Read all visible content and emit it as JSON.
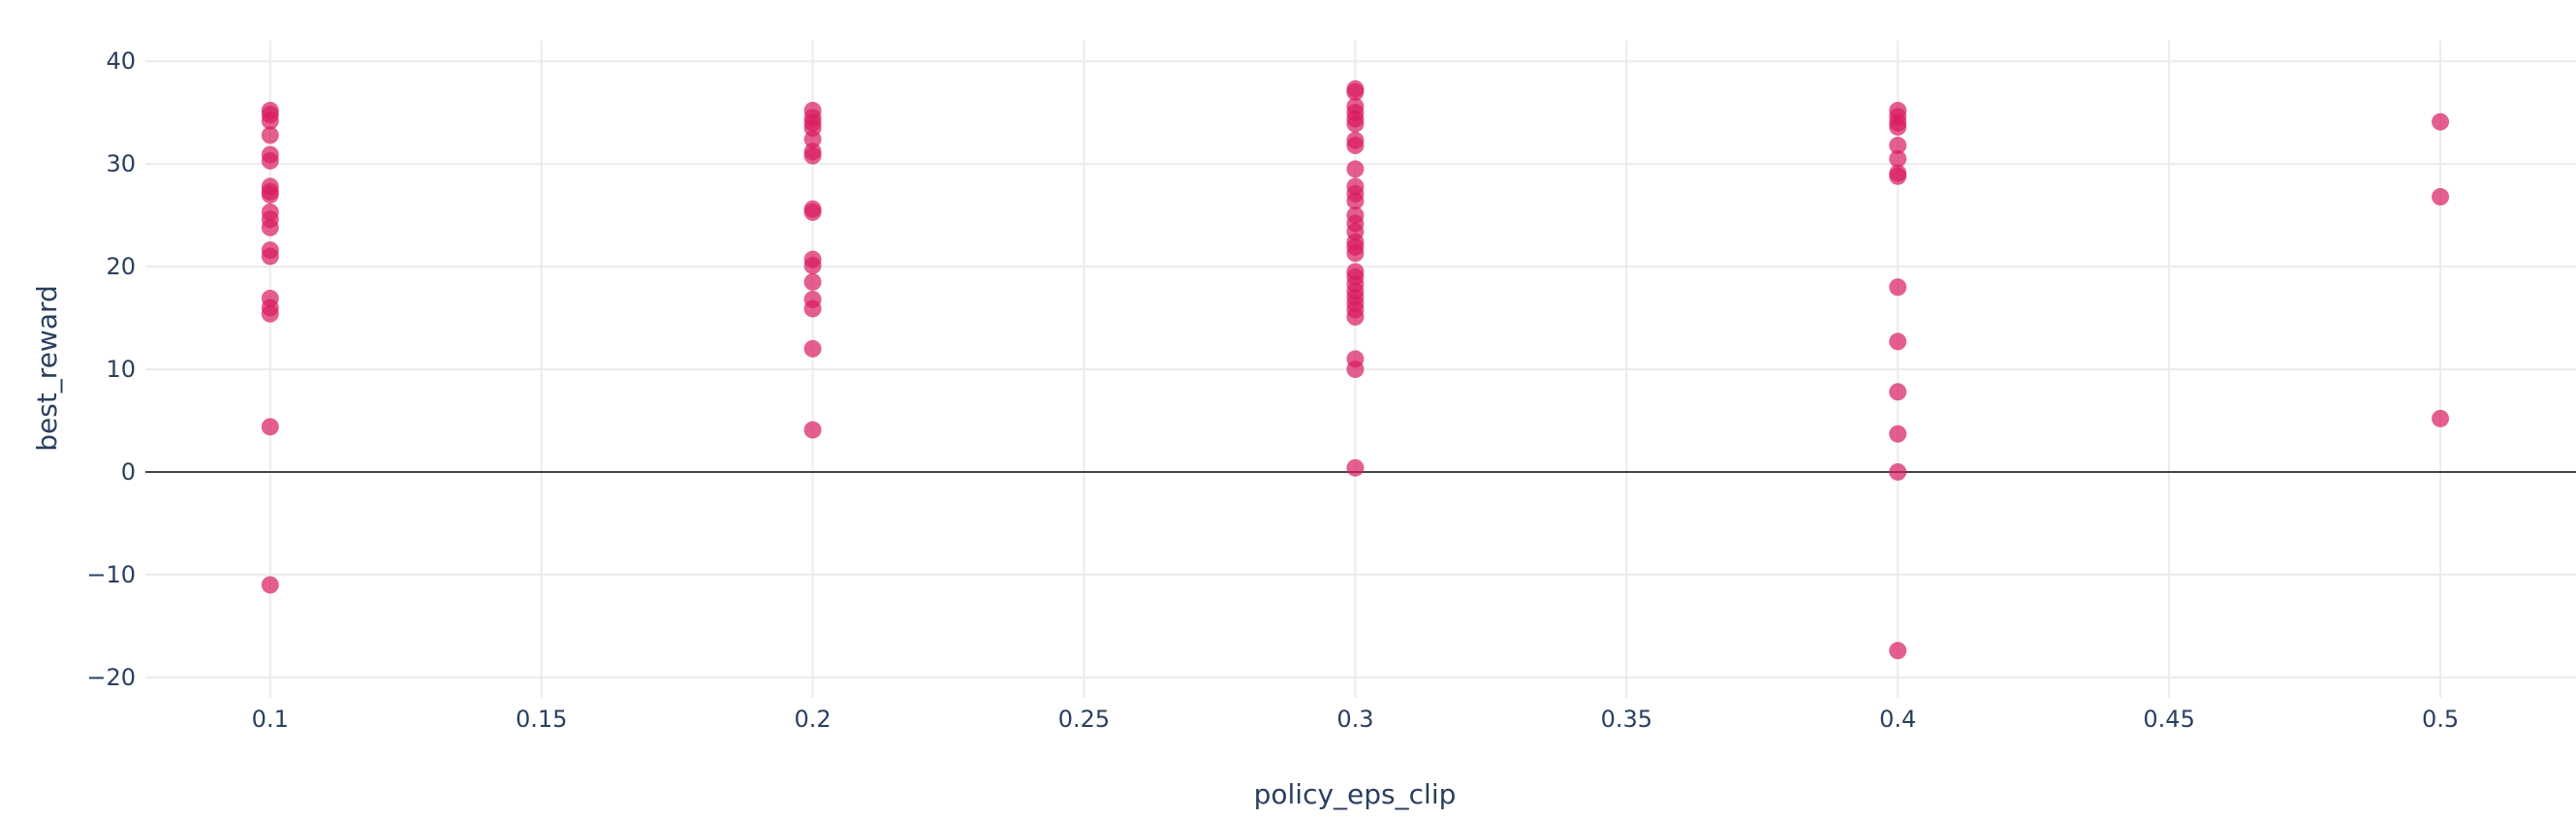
{
  "chart_data": {
    "type": "scatter",
    "xlabel": "policy_eps_clip",
    "ylabel": "best_reward",
    "xlim": [
      0.077,
      0.525
    ],
    "ylim": [
      -22,
      42
    ],
    "x_ticks": [
      0.1,
      0.15,
      0.2,
      0.25,
      0.3,
      0.35,
      0.4,
      0.45,
      0.5
    ],
    "x_tick_labels": [
      "0.1",
      "0.15",
      "0.2",
      "0.25",
      "0.3",
      "0.35",
      "0.4",
      "0.45",
      "0.5"
    ],
    "y_ticks": [
      -20,
      -10,
      0,
      10,
      20,
      30,
      40
    ],
    "y_tick_labels": [
      "−20",
      "−10",
      "0",
      "10",
      "20",
      "30",
      "40"
    ],
    "grid": true,
    "marker_color": "#d81b60",
    "series": [
      {
        "points": [
          {
            "x": 0.1,
            "y": 35.2
          },
          {
            "x": 0.1,
            "y": 34.8
          },
          {
            "x": 0.1,
            "y": 34.2
          },
          {
            "x": 0.1,
            "y": 32.8
          },
          {
            "x": 0.1,
            "y": 30.9
          },
          {
            "x": 0.1,
            "y": 30.3
          },
          {
            "x": 0.1,
            "y": 27.8
          },
          {
            "x": 0.1,
            "y": 27.3
          },
          {
            "x": 0.1,
            "y": 27.0
          },
          {
            "x": 0.1,
            "y": 25.3
          },
          {
            "x": 0.1,
            "y": 24.6
          },
          {
            "x": 0.1,
            "y": 23.8
          },
          {
            "x": 0.1,
            "y": 21.6
          },
          {
            "x": 0.1,
            "y": 21.0
          },
          {
            "x": 0.1,
            "y": 16.9
          },
          {
            "x": 0.1,
            "y": 16.0
          },
          {
            "x": 0.1,
            "y": 15.4
          },
          {
            "x": 0.1,
            "y": 4.4
          },
          {
            "x": 0.1,
            "y": -11.0
          },
          {
            "x": 0.2,
            "y": 35.2
          },
          {
            "x": 0.2,
            "y": 34.5
          },
          {
            "x": 0.2,
            "y": 34.0
          },
          {
            "x": 0.2,
            "y": 33.5
          },
          {
            "x": 0.2,
            "y": 32.4
          },
          {
            "x": 0.2,
            "y": 31.2
          },
          {
            "x": 0.2,
            "y": 30.8
          },
          {
            "x": 0.2,
            "y": 25.6
          },
          {
            "x": 0.2,
            "y": 25.3
          },
          {
            "x": 0.2,
            "y": 20.7
          },
          {
            "x": 0.2,
            "y": 20.1
          },
          {
            "x": 0.2,
            "y": 18.5
          },
          {
            "x": 0.2,
            "y": 16.8
          },
          {
            "x": 0.2,
            "y": 15.9
          },
          {
            "x": 0.2,
            "y": 12.0
          },
          {
            "x": 0.2,
            "y": 4.1
          },
          {
            "x": 0.3,
            "y": 37.3
          },
          {
            "x": 0.3,
            "y": 37.0
          },
          {
            "x": 0.3,
            "y": 35.6
          },
          {
            "x": 0.3,
            "y": 35.0
          },
          {
            "x": 0.3,
            "y": 34.4
          },
          {
            "x": 0.3,
            "y": 33.9
          },
          {
            "x": 0.3,
            "y": 32.3
          },
          {
            "x": 0.3,
            "y": 31.8
          },
          {
            "x": 0.3,
            "y": 29.5
          },
          {
            "x": 0.3,
            "y": 27.8
          },
          {
            "x": 0.3,
            "y": 27.1
          },
          {
            "x": 0.3,
            "y": 26.4
          },
          {
            "x": 0.3,
            "y": 25.0
          },
          {
            "x": 0.3,
            "y": 24.2
          },
          {
            "x": 0.3,
            "y": 23.4
          },
          {
            "x": 0.3,
            "y": 22.4
          },
          {
            "x": 0.3,
            "y": 21.9
          },
          {
            "x": 0.3,
            "y": 21.3
          },
          {
            "x": 0.3,
            "y": 19.5
          },
          {
            "x": 0.3,
            "y": 19.0
          },
          {
            "x": 0.3,
            "y": 18.3
          },
          {
            "x": 0.3,
            "y": 17.6
          },
          {
            "x": 0.3,
            "y": 17.0
          },
          {
            "x": 0.3,
            "y": 16.4
          },
          {
            "x": 0.3,
            "y": 15.8
          },
          {
            "x": 0.3,
            "y": 15.1
          },
          {
            "x": 0.3,
            "y": 11.0
          },
          {
            "x": 0.3,
            "y": 10.0
          },
          {
            "x": 0.3,
            "y": 0.4
          },
          {
            "x": 0.4,
            "y": 35.2
          },
          {
            "x": 0.4,
            "y": 34.6
          },
          {
            "x": 0.4,
            "y": 34.0
          },
          {
            "x": 0.4,
            "y": 33.6
          },
          {
            "x": 0.4,
            "y": 31.8
          },
          {
            "x": 0.4,
            "y": 30.5
          },
          {
            "x": 0.4,
            "y": 29.1
          },
          {
            "x": 0.4,
            "y": 28.8
          },
          {
            "x": 0.4,
            "y": 18.0
          },
          {
            "x": 0.4,
            "y": 12.7
          },
          {
            "x": 0.4,
            "y": 7.8
          },
          {
            "x": 0.4,
            "y": 3.7
          },
          {
            "x": 0.4,
            "y": 0.0
          },
          {
            "x": 0.4,
            "y": -17.4
          },
          {
            "x": 0.5,
            "y": 34.1
          },
          {
            "x": 0.5,
            "y": 26.8
          },
          {
            "x": 0.5,
            "y": 5.2
          }
        ]
      }
    ]
  }
}
